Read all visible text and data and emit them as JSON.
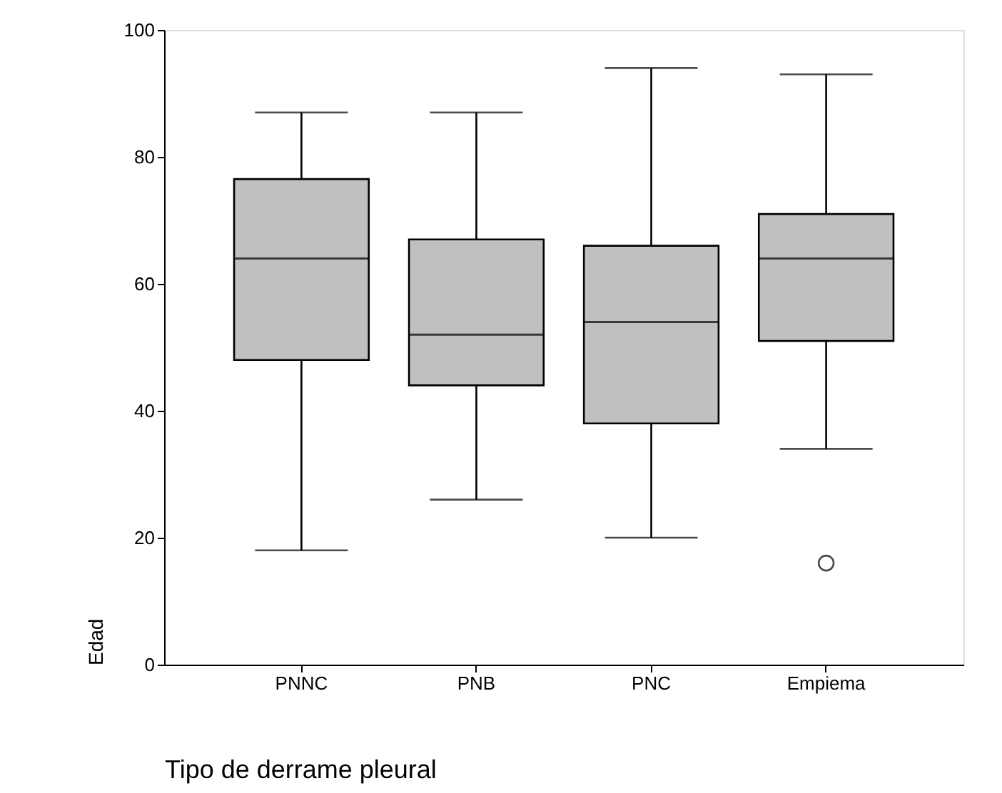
{
  "chart_data": {
    "type": "box",
    "xlabel": "Tipo de derrame pleural",
    "ylabel": "Edad",
    "categories": [
      "PNNC",
      "PNB",
      "PNC",
      "Empiema"
    ],
    "boxes": [
      {
        "low": 18,
        "q1": 48,
        "median": 64,
        "q3": 76.5,
        "high": 87
      },
      {
        "low": 26,
        "q1": 44,
        "median": 52,
        "q3": 67,
        "high": 87
      },
      {
        "low": 20,
        "q1": 38,
        "median": 54,
        "q3": 66,
        "high": 94
      },
      {
        "low": 34,
        "q1": 51,
        "median": 64,
        "q3": 71,
        "high": 93,
        "outliers": [
          16
        ]
      }
    ],
    "color": "#c0c0c0",
    "ylim": [
      0,
      100
    ],
    "yticks": [
      0,
      20,
      40,
      60,
      80,
      100
    ]
  }
}
